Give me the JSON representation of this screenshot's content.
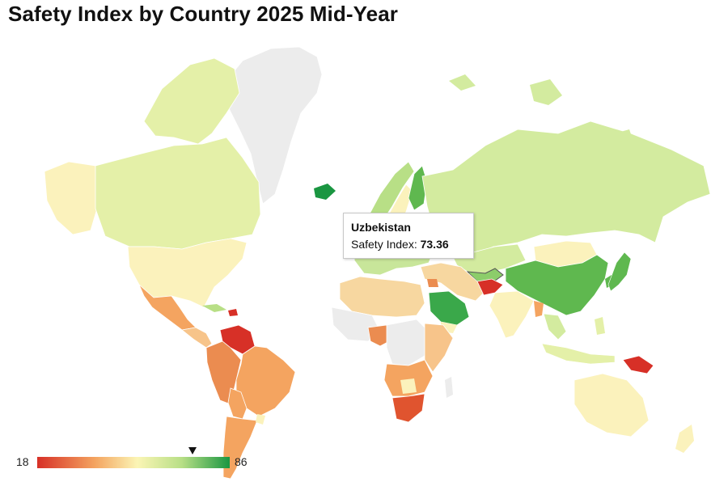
{
  "map": {
    "title": "Safety Index by Country 2025 Mid-Year",
    "colors": {
      "ocean": "#ffffff",
      "no_data": "#ececec",
      "lowest": "#d73027",
      "low": "#f4a460",
      "mid": "#fbf5b5",
      "high": "#b8df86",
      "highest": "#1a9641"
    },
    "tooltip": {
      "country": "Uzbekistan",
      "metric_label": "Safety Index:",
      "value": "73.36"
    },
    "legend": {
      "min": "18",
      "max": "86",
      "marker_value": 73.36
    }
  }
}
